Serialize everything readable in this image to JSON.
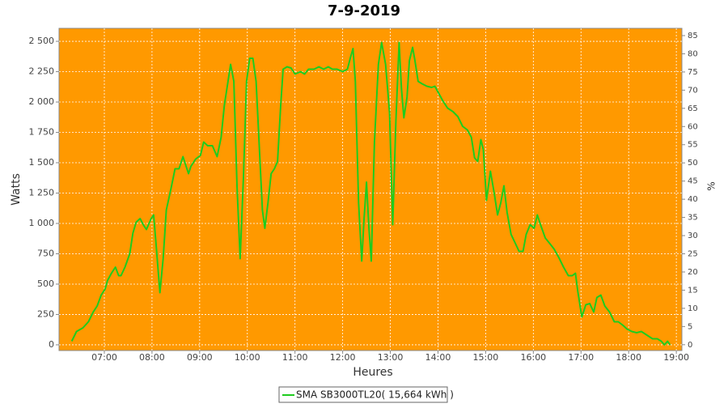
{
  "chart_data": {
    "type": "line",
    "title": "7-9-2019",
    "xlabel": "Heures",
    "ylabel": "Watts",
    "y2label": "%",
    "x": [
      "06:19",
      "06:25",
      "06:33",
      "06:40",
      "06:46",
      "06:51",
      "06:56",
      "07:01",
      "07:04",
      "07:09",
      "07:14",
      "07:18",
      "07:21",
      "07:26",
      "07:32",
      "07:36",
      "07:40",
      "07:45",
      "07:49",
      "07:53",
      "07:59",
      "08:02",
      "08:05",
      "08:10",
      "08:14",
      "08:18",
      "08:24",
      "08:29",
      "08:34",
      "08:39",
      "08:43",
      "08:46",
      "08:49",
      "08:55",
      "09:01",
      "09:05",
      "09:10",
      "09:16",
      "09:22",
      "09:27",
      "09:31",
      "09:35",
      "09:39",
      "09:43",
      "09:47",
      "09:51",
      "09:55",
      "09:59",
      "10:03",
      "10:07",
      "10:11",
      "10:15",
      "10:19",
      "10:22",
      "10:26",
      "10:30",
      "10:34",
      "10:38",
      "10:42",
      "10:45",
      "10:50",
      "10:55",
      "11:00",
      "11:07",
      "11:12",
      "11:17",
      "11:24",
      "11:30",
      "11:36",
      "11:42",
      "11:47",
      "11:53",
      "12:00",
      "12:06",
      "12:10",
      "12:13",
      "12:16",
      "12:20",
      "12:24",
      "12:27",
      "12:30",
      "12:33",
      "12:36",
      "12:40",
      "12:45",
      "12:49",
      "12:54",
      "12:59",
      "13:03",
      "13:07",
      "13:11",
      "13:14",
      "13:17",
      "13:21",
      "13:24",
      "13:28",
      "13:31",
      "13:35",
      "13:40",
      "13:46",
      "13:52",
      "13:56",
      "14:01",
      "14:06",
      "14:12",
      "14:19",
      "14:25",
      "14:31",
      "14:37",
      "14:42",
      "14:46",
      "14:50",
      "14:54",
      "14:57",
      "15:01",
      "15:06",
      "15:11",
      "15:15",
      "15:19",
      "15:23",
      "15:27",
      "15:32",
      "15:37",
      "15:42",
      "15:47",
      "15:51",
      "15:56",
      "16:01",
      "16:05",
      "16:09",
      "16:15",
      "16:20",
      "16:26",
      "16:32",
      "16:38",
      "16:44",
      "16:49",
      "16:53",
      "16:56",
      "17:01",
      "17:06",
      "17:11",
      "17:16",
      "17:20",
      "17:25",
      "17:30",
      "17:36",
      "17:42",
      "17:47",
      "17:53",
      "17:58",
      "18:04",
      "18:10",
      "18:16",
      "18:23",
      "18:30",
      "18:36",
      "18:41",
      "18:45",
      "18:49",
      "18:52"
    ],
    "series": [
      {
        "name": "SMA SB3000TL20( 15,664 kWh )",
        "color": "#1ecc1e",
        "values": [
          30,
          110,
          140,
          190,
          270,
          320,
          410,
          460,
          530,
          590,
          640,
          570,
          570,
          640,
          750,
          920,
          1010,
          1040,
          990,
          950,
          1040,
          1070,
          840,
          430,
          710,
          1110,
          1290,
          1450,
          1450,
          1550,
          1470,
          1410,
          1470,
          1530,
          1560,
          1670,
          1640,
          1640,
          1550,
          1710,
          1970,
          2140,
          2310,
          2170,
          1310,
          710,
          1370,
          2170,
          2360,
          2360,
          2170,
          1640,
          1110,
          960,
          1170,
          1410,
          1450,
          1510,
          1970,
          2270,
          2290,
          2280,
          2230,
          2250,
          2230,
          2270,
          2270,
          2290,
          2270,
          2290,
          2270,
          2270,
          2250,
          2270,
          2370,
          2440,
          2170,
          1170,
          690,
          1040,
          1340,
          970,
          690,
          1670,
          2310,
          2490,
          2310,
          1910,
          990,
          1840,
          2490,
          2110,
          1870,
          2040,
          2340,
          2450,
          2340,
          2170,
          2150,
          2130,
          2120,
          2130,
          2070,
          2010,
          1950,
          1920,
          1880,
          1800,
          1770,
          1710,
          1540,
          1510,
          1690,
          1610,
          1190,
          1430,
          1240,
          1070,
          1170,
          1310,
          1090,
          910,
          840,
          770,
          770,
          910,
          990,
          960,
          1070,
          990,
          880,
          840,
          790,
          720,
          640,
          570,
          570,
          590,
          440,
          230,
          330,
          340,
          270,
          390,
          410,
          320,
          270,
          190,
          190,
          160,
          130,
          110,
          100,
          110,
          80,
          50,
          50,
          30,
          0,
          30,
          0
        ]
      }
    ],
    "xlim": [
      "06:03",
      "19:07"
    ],
    "xticks": [
      "07:00",
      "08:00",
      "09:00",
      "10:00",
      "11:00",
      "12:00",
      "13:00",
      "14:00",
      "15:00",
      "16:00",
      "17:00",
      "18:00",
      "19:00"
    ],
    "ylim": [
      -47,
      2607
    ],
    "yticks": [
      0,
      250,
      500,
      750,
      {
        "value": 1000,
        "label": "1 000"
      },
      {
        "value": 1250,
        "label": "1 250"
      },
      {
        "value": 1500,
        "label": "1 500"
      },
      {
        "value": 1750,
        "label": "1 750"
      },
      {
        "value": 2000,
        "label": "2 000"
      },
      {
        "value": 2250,
        "label": "2 250"
      },
      {
        "value": 2500,
        "label": "2 500"
      }
    ],
    "y2lim": [
      -1.6,
      87
    ],
    "y2ticks": [
      0,
      5,
      10,
      15,
      20,
      25,
      30,
      35,
      40,
      45,
      50,
      55,
      60,
      65,
      70,
      75,
      80,
      85
    ],
    "grid": true,
    "background": "#ff9900",
    "legend": "bottom"
  }
}
